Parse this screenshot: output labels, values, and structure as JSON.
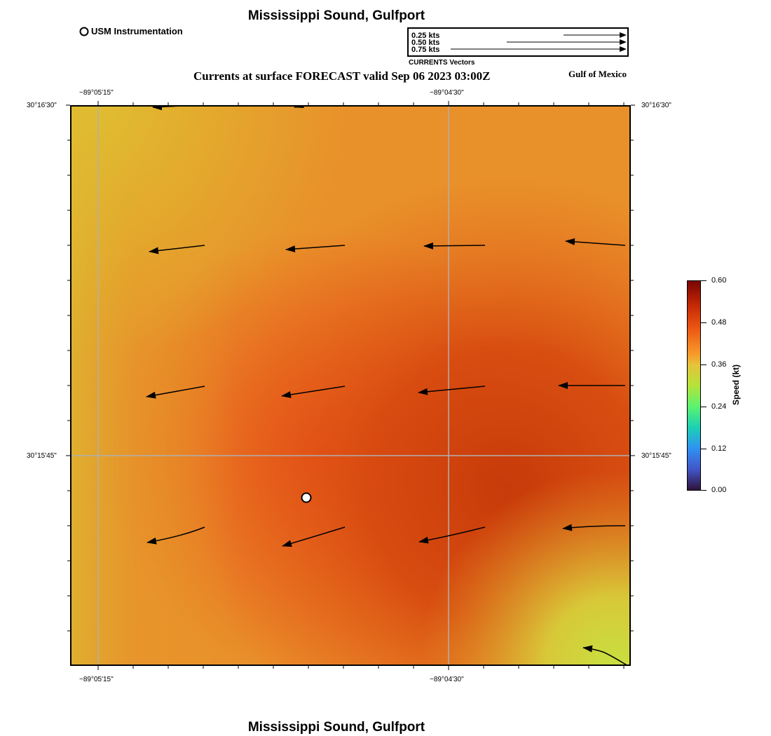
{
  "header": {
    "title": "Mississippi Sound, Gulfport",
    "instrumentation_label": "USM Instrumentation",
    "subtitle": "Currents at surface FORECAST valid Sep 06 2023 03:00Z",
    "region": "Gulf of Mexico"
  },
  "vector_legend": {
    "entries": [
      "0.25 kts",
      "0.50 kts",
      "0.75 kts"
    ],
    "caption": "CURRENTS Vectors"
  },
  "map": {
    "lon_labels": [
      "−89°05'15\"",
      "−89°04'30\""
    ],
    "lat_labels": [
      "30°16'30\"",
      "30°15'45\""
    ],
    "colors": {
      "frame": "#000000",
      "grid": "#b0b0b0",
      "station_fill": "#ffffff",
      "arrow": "#000000"
    },
    "field_description_colors": [
      "#e0b830",
      "#e8922a",
      "#ea5a1a",
      "#c83d0c",
      "#c6d83c"
    ]
  },
  "colorbar": {
    "title": "Speed (kt)",
    "ticks": [
      "0.60",
      "0.48",
      "0.36",
      "0.24",
      "0.12",
      "0.00"
    ],
    "range": [
      0.0,
      0.6
    ]
  },
  "footer": {
    "title": "Mississippi Sound, Gulfport"
  }
}
